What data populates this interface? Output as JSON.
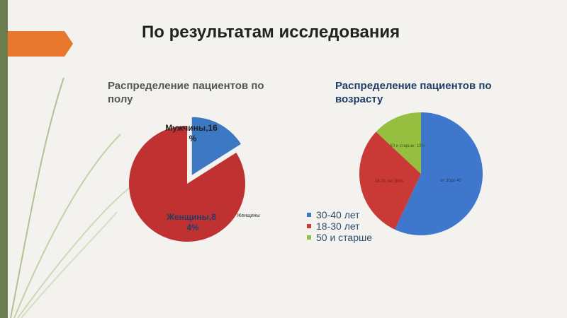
{
  "slide": {
    "title": "По результатам исследования"
  },
  "chart_data": [
    {
      "type": "pie",
      "title": "Распределение пациентов по полу",
      "exploded": true,
      "slices": [
        {
          "label": "Мужчины",
          "value": 16,
          "data_label": "Мужчины,16 %",
          "color": "#3c78c4"
        },
        {
          "label": "Женщины",
          "value": 84,
          "data_label": "Женщины,8 4%",
          "color": "#c03232"
        }
      ],
      "legend_text": "Женщины"
    },
    {
      "type": "pie",
      "title": "Распределение пациентов по возрасту",
      "slices": [
        {
          "label": "30-40 лет",
          "value": 57,
          "data_label": "от 30до 40",
          "color": "#3e77cc"
        },
        {
          "label": "18-30 лет",
          "value": 30,
          "data_label": "18-30 лет;30%",
          "color": "#c93a36"
        },
        {
          "label": "50 и старше",
          "value": 13,
          "data_label": "50 и старше; 13%",
          "color": "#96bf3f"
        }
      ],
      "legend": [
        "30-40 лет",
        "18-30 лет",
        "50 и старше"
      ],
      "legend_placement": "bottom-left"
    }
  ]
}
